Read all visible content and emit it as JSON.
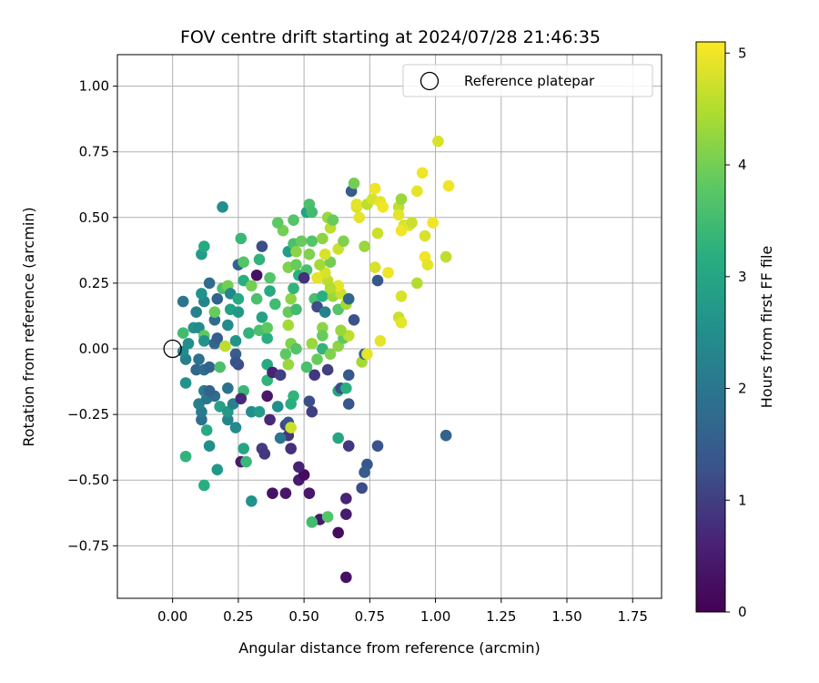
{
  "chart_data": {
    "type": "scatter",
    "title": "FOV centre drift starting at 2024/07/28 21:46:35",
    "xlabel": "Angular distance from reference (arcmin)",
    "ylabel": "Rotation from reference (arcmin)",
    "colorbar_label": "Hours from first FF file",
    "xlim": [
      -0.21,
      1.86
    ],
    "ylim": [
      -0.95,
      1.12
    ],
    "x_ticks": [
      0.0,
      0.25,
      0.5,
      0.75,
      1.0,
      1.25,
      1.5,
      1.75
    ],
    "x_tick_labels": [
      "0.00",
      "0.25",
      "0.50",
      "0.75",
      "1.00",
      "1.25",
      "1.50",
      "1.75"
    ],
    "y_ticks": [
      -0.75,
      -0.5,
      -0.25,
      0.0,
      0.25,
      0.5,
      0.75,
      1.0
    ],
    "y_tick_labels": [
      "−0.75",
      "−0.50",
      "−0.25",
      "0.00",
      "0.25",
      "0.50",
      "0.75",
      "1.00"
    ],
    "colorbar_range": [
      0,
      5.1
    ],
    "colorbar_ticks": [
      0,
      1,
      2,
      3,
      4,
      5
    ],
    "colorbar_tick_labels": [
      "0",
      "1",
      "2",
      "3",
      "4",
      "5"
    ],
    "colormap": "viridis",
    "grid": true,
    "legend": {
      "position": "top-right",
      "entries": [
        {
          "label": "Reference platepar",
          "marker": "open-circle"
        }
      ]
    },
    "reference_point": {
      "x": 0.0,
      "y": 0.0
    },
    "points": [
      {
        "x": 0.66,
        "y": -0.87,
        "t": 0.3
      },
      {
        "x": 0.63,
        "y": -0.7,
        "t": 0.2
      },
      {
        "x": 0.56,
        "y": -0.65,
        "t": 0.4
      },
      {
        "x": 0.66,
        "y": -0.63,
        "t": 0.5
      },
      {
        "x": 0.52,
        "y": -0.55,
        "t": 0.4
      },
      {
        "x": 0.66,
        "y": -0.57,
        "t": 0.6
      },
      {
        "x": 0.38,
        "y": -0.55,
        "t": 0.3
      },
      {
        "x": 0.43,
        "y": -0.55,
        "t": 0.4
      },
      {
        "x": 0.48,
        "y": -0.5,
        "t": 0.5
      },
      {
        "x": 0.5,
        "y": -0.48,
        "t": 0.2
      },
      {
        "x": 0.48,
        "y": -0.45,
        "t": 0.6
      },
      {
        "x": 0.45,
        "y": -0.38,
        "t": 0.8
      },
      {
        "x": 0.67,
        "y": -0.37,
        "t": 0.9
      },
      {
        "x": 0.78,
        "y": -0.37,
        "t": 1.3
      },
      {
        "x": 0.74,
        "y": -0.44,
        "t": 1.4
      },
      {
        "x": 0.73,
        "y": -0.47,
        "t": 1.5
      },
      {
        "x": 0.72,
        "y": -0.53,
        "t": 1.2
      },
      {
        "x": 1.04,
        "y": -0.33,
        "t": 1.6
      },
      {
        "x": 0.34,
        "y": -0.38,
        "t": 1.0
      },
      {
        "x": 0.35,
        "y": -0.4,
        "t": 0.9
      },
      {
        "x": 0.26,
        "y": -0.43,
        "t": 0.5
      },
      {
        "x": 0.37,
        "y": -0.27,
        "t": 0.7
      },
      {
        "x": 0.44,
        "y": -0.33,
        "t": 0.9
      },
      {
        "x": 0.41,
        "y": -0.34,
        "t": 2.0
      },
      {
        "x": 0.53,
        "y": -0.24,
        "t": 1.0
      },
      {
        "x": 0.52,
        "y": -0.2,
        "t": 1.2
      },
      {
        "x": 0.43,
        "y": -0.29,
        "t": 1.1
      },
      {
        "x": 0.44,
        "y": -0.28,
        "t": 1.3
      },
      {
        "x": 0.45,
        "y": -0.3,
        "t": 4.7
      },
      {
        "x": 0.3,
        "y": -0.58,
        "t": 2.6
      },
      {
        "x": 0.12,
        "y": -0.52,
        "t": 3.2
      },
      {
        "x": 0.05,
        "y": -0.41,
        "t": 3.3
      },
      {
        "x": 0.17,
        "y": -0.46,
        "t": 2.7
      },
      {
        "x": 0.27,
        "y": -0.38,
        "t": 3.0
      },
      {
        "x": 0.28,
        "y": -0.43,
        "t": 3.4
      },
      {
        "x": 0.14,
        "y": -0.37,
        "t": 2.5
      },
      {
        "x": 0.13,
        "y": -0.31,
        "t": 3.1
      },
      {
        "x": 0.24,
        "y": -0.3,
        "t": 2.4
      },
      {
        "x": 0.21,
        "y": -0.27,
        "t": 2.3
      },
      {
        "x": 0.3,
        "y": -0.24,
        "t": 2.5
      },
      {
        "x": 0.33,
        "y": -0.24,
        "t": 2.8
      },
      {
        "x": 0.11,
        "y": -0.27,
        "t": 1.9
      },
      {
        "x": 0.11,
        "y": -0.24,
        "t": 2.1
      },
      {
        "x": 0.1,
        "y": -0.21,
        "t": 2.2
      },
      {
        "x": 0.13,
        "y": -0.19,
        "t": 2.0
      },
      {
        "x": 0.16,
        "y": -0.18,
        "t": 1.8
      },
      {
        "x": 0.18,
        "y": -0.22,
        "t": 2.9
      },
      {
        "x": 0.21,
        "y": -0.24,
        "t": 2.7
      },
      {
        "x": 0.23,
        "y": -0.21,
        "t": 2.2
      },
      {
        "x": 0.27,
        "y": -0.16,
        "t": 3.4
      },
      {
        "x": 0.26,
        "y": -0.19,
        "t": 0.7
      },
      {
        "x": 0.21,
        "y": -0.15,
        "t": 1.9
      },
      {
        "x": 0.12,
        "y": -0.16,
        "t": 2.1
      },
      {
        "x": 0.14,
        "y": -0.16,
        "t": 1.6
      },
      {
        "x": 0.05,
        "y": -0.13,
        "t": 2.6
      },
      {
        "x": 0.09,
        "y": -0.08,
        "t": 1.7
      },
      {
        "x": 0.12,
        "y": -0.08,
        "t": 1.8
      },
      {
        "x": 0.14,
        "y": -0.07,
        "t": 1.6
      },
      {
        "x": 0.1,
        "y": -0.04,
        "t": 1.9
      },
      {
        "x": 0.18,
        "y": -0.07,
        "t": 3.6
      },
      {
        "x": 0.24,
        "y": -0.02,
        "t": 1.5
      },
      {
        "x": 0.25,
        "y": -0.06,
        "t": 1.2
      },
      {
        "x": 0.24,
        "y": -0.05,
        "t": 1.3
      },
      {
        "x": 0.05,
        "y": -0.04,
        "t": 2.2
      },
      {
        "x": 0.04,
        "y": -0.01,
        "t": 2.4
      },
      {
        "x": 0.06,
        "y": 0.02,
        "t": 2.5
      },
      {
        "x": 0.04,
        "y": 0.06,
        "t": 3.5
      },
      {
        "x": 0.08,
        "y": 0.08,
        "t": 2.6
      },
      {
        "x": 0.1,
        "y": 0.08,
        "t": 2.4
      },
      {
        "x": 0.12,
        "y": 0.05,
        "t": 3.8
      },
      {
        "x": 0.12,
        "y": 0.03,
        "t": 2.6
      },
      {
        "x": 0.16,
        "y": 0.02,
        "t": 1.7
      },
      {
        "x": 0.17,
        "y": 0.04,
        "t": 1.5
      },
      {
        "x": 0.16,
        "y": 0.11,
        "t": 1.8
      },
      {
        "x": 0.2,
        "y": 0.01,
        "t": 4.6
      },
      {
        "x": 0.24,
        "y": 0.03,
        "t": 2.6
      },
      {
        "x": 0.29,
        "y": 0.06,
        "t": 3.3
      },
      {
        "x": 0.33,
        "y": 0.07,
        "t": 3.6
      },
      {
        "x": 0.36,
        "y": 0.04,
        "t": 3.2
      },
      {
        "x": 0.36,
        "y": 0.08,
        "t": 3.8
      },
      {
        "x": 0.04,
        "y": 0.18,
        "t": 2.0
      },
      {
        "x": 0.09,
        "y": 0.14,
        "t": 2.2
      },
      {
        "x": 0.12,
        "y": 0.18,
        "t": 2.3
      },
      {
        "x": 0.11,
        "y": 0.21,
        "t": 2.6
      },
      {
        "x": 0.14,
        "y": 0.25,
        "t": 1.8
      },
      {
        "x": 0.17,
        "y": 0.19,
        "t": 1.6
      },
      {
        "x": 0.16,
        "y": 0.14,
        "t": 3.9
      },
      {
        "x": 0.19,
        "y": 0.23,
        "t": 3.6
      },
      {
        "x": 0.21,
        "y": 0.24,
        "t": 4.0
      },
      {
        "x": 0.22,
        "y": 0.21,
        "t": 2.3
      },
      {
        "x": 0.22,
        "y": 0.15,
        "t": 2.9
      },
      {
        "x": 0.25,
        "y": 0.14,
        "t": 2.7
      },
      {
        "x": 0.25,
        "y": 0.19,
        "t": 3.1
      },
      {
        "x": 0.21,
        "y": 0.09,
        "t": 2.4
      },
      {
        "x": 0.11,
        "y": 0.36,
        "t": 2.8
      },
      {
        "x": 0.12,
        "y": 0.39,
        "t": 3.1
      },
      {
        "x": 0.19,
        "y": 0.54,
        "t": 2.5
      },
      {
        "x": 0.26,
        "y": 0.42,
        "t": 3.4
      },
      {
        "x": 0.25,
        "y": 0.32,
        "t": 1.6
      },
      {
        "x": 0.27,
        "y": 0.33,
        "t": 3.7
      },
      {
        "x": 0.27,
        "y": 0.26,
        "t": 3.2
      },
      {
        "x": 0.3,
        "y": 0.24,
        "t": 4.0
      },
      {
        "x": 0.32,
        "y": 0.28,
        "t": 0.3
      },
      {
        "x": 0.33,
        "y": 0.34,
        "t": 3.3
      },
      {
        "x": 0.34,
        "y": 0.39,
        "t": 1.2
      },
      {
        "x": 0.34,
        "y": 0.12,
        "t": 2.9
      },
      {
        "x": 0.37,
        "y": 0.27,
        "t": 3.7
      },
      {
        "x": 0.37,
        "y": 0.22,
        "t": 3.1
      },
      {
        "x": 0.39,
        "y": 0.17,
        "t": 3.5
      },
      {
        "x": 0.32,
        "y": 0.19,
        "t": 3.6
      },
      {
        "x": 0.36,
        "y": -0.06,
        "t": 3.1
      },
      {
        "x": 0.36,
        "y": -0.12,
        "t": 3.3
      },
      {
        "x": 0.38,
        "y": -0.09,
        "t": 0.6
      },
      {
        "x": 0.36,
        "y": -0.18,
        "t": 0.4
      },
      {
        "x": 0.41,
        "y": -0.1,
        "t": 1.0
      },
      {
        "x": 0.4,
        "y": -0.22,
        "t": 2.5
      },
      {
        "x": 0.46,
        "y": -0.18,
        "t": 3.3
      },
      {
        "x": 0.45,
        "y": -0.21,
        "t": 3.2
      },
      {
        "x": 0.43,
        "y": -0.02,
        "t": 3.8
      },
      {
        "x": 0.44,
        "y": -0.06,
        "t": 4.3
      },
      {
        "x": 0.45,
        "y": 0.02,
        "t": 4.1
      },
      {
        "x": 0.47,
        "y": 0.0,
        "t": 3.7
      },
      {
        "x": 0.44,
        "y": 0.09,
        "t": 4.4
      },
      {
        "x": 0.44,
        "y": 0.14,
        "t": 3.9
      },
      {
        "x": 0.45,
        "y": 0.19,
        "t": 4.2
      },
      {
        "x": 0.47,
        "y": 0.15,
        "t": 3.5
      },
      {
        "x": 0.46,
        "y": 0.23,
        "t": 3.3
      },
      {
        "x": 0.48,
        "y": 0.28,
        "t": 3.2
      },
      {
        "x": 0.44,
        "y": 0.31,
        "t": 4.1
      },
      {
        "x": 0.47,
        "y": 0.32,
        "t": 3.9
      },
      {
        "x": 0.42,
        "y": 0.45,
        "t": 4.0
      },
      {
        "x": 0.44,
        "y": 0.37,
        "t": 2.8
      },
      {
        "x": 0.46,
        "y": 0.4,
        "t": 3.6
      },
      {
        "x": 0.46,
        "y": 0.49,
        "t": 3.7
      },
      {
        "x": 0.47,
        "y": 0.37,
        "t": 4.2
      },
      {
        "x": 0.49,
        "y": 0.41,
        "t": 3.9
      },
      {
        "x": 0.51,
        "y": 0.52,
        "t": 2.9
      },
      {
        "x": 0.4,
        "y": 0.48,
        "t": 3.8
      },
      {
        "x": 0.52,
        "y": 0.55,
        "t": 3.6
      },
      {
        "x": 0.53,
        "y": 0.52,
        "t": 3.5
      },
      {
        "x": 0.53,
        "y": 0.41,
        "t": 3.7
      },
      {
        "x": 0.52,
        "y": 0.36,
        "t": 4.1
      },
      {
        "x": 0.51,
        "y": 0.3,
        "t": 3.6
      },
      {
        "x": 0.5,
        "y": 0.27,
        "t": 0.8
      },
      {
        "x": 0.54,
        "y": 0.19,
        "t": 3.6
      },
      {
        "x": 0.55,
        "y": 0.16,
        "t": 1.2
      },
      {
        "x": 0.57,
        "y": 0.2,
        "t": 3.2
      },
      {
        "x": 0.58,
        "y": 0.14,
        "t": 2.2
      },
      {
        "x": 0.57,
        "y": 0.08,
        "t": 4.2
      },
      {
        "x": 0.57,
        "y": 0.05,
        "t": 3.9
      },
      {
        "x": 0.57,
        "y": -0.0,
        "t": 3.3
      },
      {
        "x": 0.53,
        "y": 0.02,
        "t": 4.3
      },
      {
        "x": 0.54,
        "y": -0.1,
        "t": 0.9
      },
      {
        "x": 0.55,
        "y": -0.04,
        "t": 3.9
      },
      {
        "x": 0.51,
        "y": -0.07,
        "t": 3.6
      },
      {
        "x": 0.59,
        "y": -0.08,
        "t": 1.0
      },
      {
        "x": 0.6,
        "y": -0.02,
        "t": 4.1
      },
      {
        "x": 0.63,
        "y": -0.16,
        "t": 3.0
      },
      {
        "x": 0.64,
        "y": -0.15,
        "t": 1.2
      },
      {
        "x": 0.63,
        "y": 0.01,
        "t": 4.2
      },
      {
        "x": 0.65,
        "y": 0.04,
        "t": 3.8
      },
      {
        "x": 0.67,
        "y": -0.1,
        "t": 1.4
      },
      {
        "x": 0.67,
        "y": 0.05,
        "t": 4.6
      },
      {
        "x": 0.64,
        "y": 0.07,
        "t": 4.3
      },
      {
        "x": 0.63,
        "y": 0.15,
        "t": 3.7
      },
      {
        "x": 0.61,
        "y": 0.2,
        "t": 4.3
      },
      {
        "x": 0.64,
        "y": 0.21,
        "t": 4.7
      },
      {
        "x": 0.66,
        "y": 0.17,
        "t": 4.4
      },
      {
        "x": 0.63,
        "y": 0.24,
        "t": 4.9
      },
      {
        "x": 0.67,
        "y": 0.19,
        "t": 1.7
      },
      {
        "x": 0.69,
        "y": 0.11,
        "t": 1.3
      },
      {
        "x": 0.59,
        "y": 0.26,
        "t": 4.6
      },
      {
        "x": 0.58,
        "y": 0.29,
        "t": 4.8
      },
      {
        "x": 0.55,
        "y": 0.27,
        "t": 4.9
      },
      {
        "x": 0.56,
        "y": 0.32,
        "t": 4.4
      },
      {
        "x": 0.6,
        "y": 0.33,
        "t": 4.0
      },
      {
        "x": 0.6,
        "y": 0.23,
        "t": 4.5
      },
      {
        "x": 0.58,
        "y": 0.36,
        "t": 4.8
      },
      {
        "x": 0.63,
        "y": 0.38,
        "t": 4.7
      },
      {
        "x": 0.65,
        "y": 0.41,
        "t": 4.1
      },
      {
        "x": 0.57,
        "y": 0.42,
        "t": 4.2
      },
      {
        "x": 0.6,
        "y": 0.46,
        "t": 4.6
      },
      {
        "x": 0.59,
        "y": 0.5,
        "t": 4.3
      },
      {
        "x": 0.61,
        "y": 0.49,
        "t": 3.9
      },
      {
        "x": 0.68,
        "y": 0.6,
        "t": 1.5
      },
      {
        "x": 0.69,
        "y": 0.63,
        "t": 4.0
      },
      {
        "x": 0.7,
        "y": 0.54,
        "t": 4.8
      },
      {
        "x": 0.7,
        "y": 0.55,
        "t": 4.9
      },
      {
        "x": 0.71,
        "y": 0.5,
        "t": 4.9
      },
      {
        "x": 0.73,
        "y": 0.39,
        "t": 4.3
      },
      {
        "x": 0.74,
        "y": 0.55,
        "t": 4.6
      },
      {
        "x": 0.76,
        "y": 0.57,
        "t": 4.8
      },
      {
        "x": 0.77,
        "y": 0.61,
        "t": 5.0
      },
      {
        "x": 0.78,
        "y": 0.44,
        "t": 4.7
      },
      {
        "x": 0.79,
        "y": 0.56,
        "t": 4.9
      },
      {
        "x": 0.8,
        "y": 0.54,
        "t": 5.0
      },
      {
        "x": 0.77,
        "y": 0.31,
        "t": 4.8
      },
      {
        "x": 0.78,
        "y": 0.26,
        "t": 1.4
      },
      {
        "x": 0.79,
        "y": 0.03,
        "t": 4.9
      },
      {
        "x": 0.82,
        "y": 0.29,
        "t": 5.0
      },
      {
        "x": 0.72,
        "y": -0.05,
        "t": 4.4
      },
      {
        "x": 0.73,
        "y": -0.02,
        "t": 1.6
      },
      {
        "x": 0.74,
        "y": -0.02,
        "t": 4.9
      },
      {
        "x": 0.67,
        "y": -0.21,
        "t": 1.4
      },
      {
        "x": 0.66,
        "y": -0.15,
        "t": 3.2
      },
      {
        "x": 0.63,
        "y": -0.34,
        "t": 3.0
      },
      {
        "x": 0.53,
        "y": -0.66,
        "t": 3.5
      },
      {
        "x": 0.59,
        "y": -0.64,
        "t": 3.7
      },
      {
        "x": 0.86,
        "y": 0.54,
        "t": 4.6
      },
      {
        "x": 0.86,
        "y": 0.51,
        "t": 4.9
      },
      {
        "x": 0.87,
        "y": 0.57,
        "t": 4.3
      },
      {
        "x": 0.88,
        "y": 0.47,
        "t": 4.8
      },
      {
        "x": 0.87,
        "y": 0.45,
        "t": 5.0
      },
      {
        "x": 0.9,
        "y": 0.47,
        "t": 4.9
      },
      {
        "x": 0.91,
        "y": 0.48,
        "t": 4.7
      },
      {
        "x": 0.93,
        "y": 0.6,
        "t": 4.9
      },
      {
        "x": 0.95,
        "y": 0.67,
        "t": 5.0
      },
      {
        "x": 0.96,
        "y": 0.43,
        "t": 4.8
      },
      {
        "x": 0.96,
        "y": 0.35,
        "t": 5.0
      },
      {
        "x": 0.97,
        "y": 0.32,
        "t": 4.9
      },
      {
        "x": 0.99,
        "y": 0.48,
        "t": 5.0
      },
      {
        "x": 0.93,
        "y": 0.25,
        "t": 4.5
      },
      {
        "x": 0.86,
        "y": 0.12,
        "t": 4.7
      },
      {
        "x": 0.87,
        "y": 0.1,
        "t": 4.9
      },
      {
        "x": 0.87,
        "y": 0.2,
        "t": 4.8
      },
      {
        "x": 1.01,
        "y": 0.79,
        "t": 4.8
      },
      {
        "x": 1.05,
        "y": 0.62,
        "t": 5.0
      },
      {
        "x": 1.04,
        "y": 0.35,
        "t": 4.6
      }
    ]
  }
}
